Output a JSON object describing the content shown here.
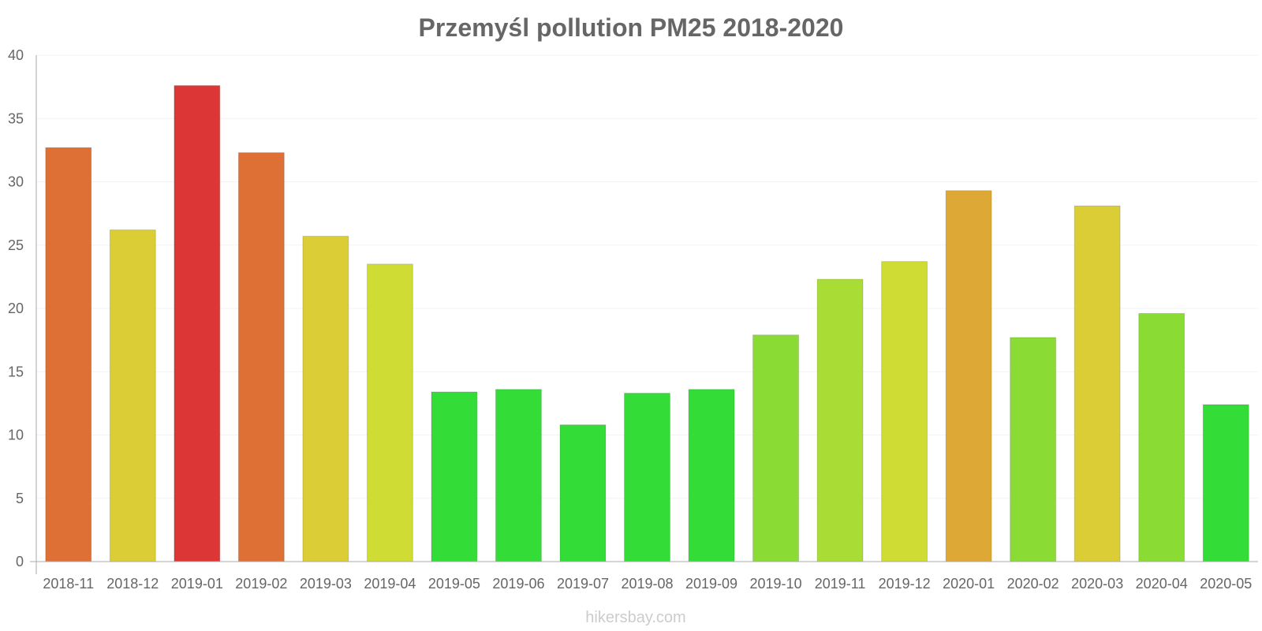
{
  "chart_data": {
    "type": "bar",
    "title": "Przemyśl pollution PM25 2018-2020",
    "xlabel": "",
    "ylabel": "",
    "ylim": [
      0,
      40
    ],
    "yticks": [
      0,
      5,
      10,
      15,
      20,
      25,
      30,
      35,
      40
    ],
    "categories": [
      "2018-11",
      "2018-12",
      "2019-01",
      "2019-02",
      "2019-03",
      "2019-04",
      "2019-05",
      "2019-06",
      "2019-07",
      "2019-08",
      "2019-09",
      "2019-10",
      "2019-11",
      "2019-12",
      "2020-01",
      "2020-02",
      "2020-03",
      "2020-04",
      "2020-05"
    ],
    "values": [
      32.7,
      26.2,
      37.6,
      32.3,
      25.7,
      23.5,
      13.4,
      13.6,
      10.8,
      13.3,
      13.6,
      17.9,
      22.3,
      23.7,
      29.3,
      17.7,
      28.1,
      19.6,
      12.4
    ],
    "colors": [
      "#de6f35",
      "#dbcd35",
      "#dc3636",
      "#de6f35",
      "#dbcd35",
      "#cfdc33",
      "#34dc38",
      "#34dc38",
      "#34dc38",
      "#34dc38",
      "#34dc38",
      "#8adc35",
      "#a9dc35",
      "#cfdc33",
      "#dda835",
      "#8adc35",
      "#dbcd35",
      "#8adc35",
      "#34dc38"
    ],
    "grid": true,
    "legend": "none"
  },
  "watermark": "hikersbay.com"
}
